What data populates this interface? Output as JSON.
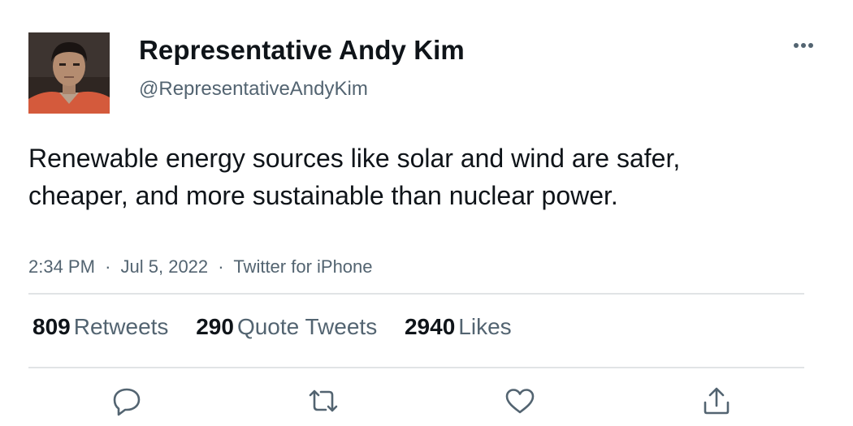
{
  "author": {
    "display_name": "Representative Andy Kim",
    "handle": "@RepresentativeAndyKim"
  },
  "tweet": {
    "text": "Renewable energy sources like solar and wind are safer, cheaper, and more sustainable than nuclear power.",
    "time": "2:34 PM",
    "date": "Jul 5, 2022",
    "source": "Twitter for iPhone",
    "separator": "·"
  },
  "stats": {
    "retweets_count": "809",
    "retweets_label": "Retweets",
    "quotes_count": "290",
    "quotes_label": "Quote Tweets",
    "likes_count": "2940",
    "likes_label": "Likes"
  },
  "icons": {
    "more": "more-horizontal-icon",
    "reply": "reply-icon",
    "retweet": "retweet-icon",
    "like": "heart-icon",
    "share": "share-icon"
  },
  "colors": {
    "text_primary": "#0f1419",
    "text_secondary": "#536471",
    "divider": "#e1e4e6",
    "icon": "#536471"
  }
}
